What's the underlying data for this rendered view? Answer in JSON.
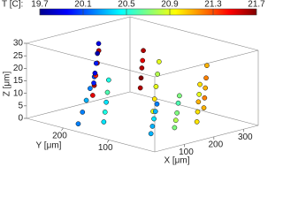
{
  "chart_data": {
    "type": "scatter3d",
    "colorbar_label": "T [C]:",
    "clim": [
      19.7,
      21.7
    ],
    "cticks": [
      19.7,
      20.1,
      20.5,
      20.9,
      21.3,
      21.7
    ],
    "xlabel": "X [μm]",
    "ylabel": "Y [μm]",
    "zlabel": "Z [μm]",
    "xlim": [
      0,
      350
    ],
    "ylim": [
      0,
      280
    ],
    "zlim": [
      0,
      30
    ],
    "xticks": [
      100,
      200,
      300
    ],
    "yticks": [
      100,
      200
    ],
    "zticks": [
      0,
      5,
      10,
      15,
      20,
      25,
      30
    ],
    "series": [
      {
        "x": [
          20,
          22,
          24,
          26,
          28
        ],
        "y": [
          180,
          172,
          165,
          158,
          150
        ],
        "z": [
          2,
          7,
          12,
          17,
          22
        ],
        "t": [
          20.2,
          20.2,
          20.3,
          20.2,
          20.1
        ]
      },
      {
        "x": [
          60,
          61,
          62,
          63,
          64
        ],
        "y": [
          150,
          148,
          146,
          144,
          142
        ],
        "z": [
          3,
          7,
          11,
          15,
          20
        ],
        "t": [
          20.4,
          20.5,
          20.4,
          20.6,
          20.5
        ]
      },
      {
        "x": [
          100,
          102,
          104,
          106,
          108
        ],
        "y": [
          200,
          198,
          196,
          194,
          192
        ],
        "z": [
          10,
          14,
          18,
          23,
          28
        ],
        "t": [
          21.5,
          21.6,
          21.4,
          21.5,
          21.6
        ]
      },
      {
        "x": [
          150,
          151,
          152,
          153,
          154
        ],
        "y": [
          230,
          228,
          226,
          224,
          222
        ],
        "z": [
          12,
          16,
          20,
          24,
          28
        ],
        "t": [
          20.0,
          19.9,
          20.0,
          19.8,
          19.9
        ]
      },
      {
        "x": [
          180,
          182,
          184,
          186,
          188
        ],
        "y": [
          120,
          118,
          116,
          114,
          112
        ],
        "z": [
          5,
          10,
          15,
          20,
          25
        ],
        "t": [
          20.9,
          21.0,
          20.9,
          20.8,
          20.9
        ]
      },
      {
        "x": [
          230,
          231,
          232,
          233,
          234
        ],
        "y": [
          180,
          179,
          178,
          177,
          176
        ],
        "z": [
          10,
          14,
          18,
          21,
          25
        ],
        "t": [
          21.6,
          21.7,
          21.6,
          21.5,
          21.6
        ]
      },
      {
        "x": [
          160,
          161,
          162,
          163,
          164
        ],
        "y": [
          60,
          58,
          56,
          54,
          52
        ],
        "z": [
          2,
          5,
          8,
          12,
          15
        ],
        "t": [
          20.7,
          20.8,
          20.7,
          20.6,
          20.7
        ]
      },
      {
        "x": [
          220,
          221,
          222,
          223,
          224
        ],
        "y": [
          50,
          49,
          48,
          47,
          46
        ],
        "z": [
          3,
          7,
          11,
          14,
          18
        ],
        "t": [
          21.0,
          21.0,
          21.1,
          20.9,
          21.0
        ]
      },
      {
        "x": [
          290,
          291,
          292,
          293,
          294
        ],
        "y": [
          80,
          79,
          78,
          77,
          76
        ],
        "z": [
          5,
          9,
          13,
          17,
          22
        ],
        "t": [
          21.1,
          21.2,
          21.1,
          21.2,
          21.1
        ]
      },
      {
        "x": [
          80,
          82,
          84,
          86,
          88
        ],
        "y": [
          60,
          58,
          56,
          54,
          52
        ],
        "z": [
          2,
          5,
          8,
          11,
          14
        ],
        "t": [
          20.3,
          20.3,
          20.4,
          20.3,
          20.2
        ]
      }
    ]
  }
}
